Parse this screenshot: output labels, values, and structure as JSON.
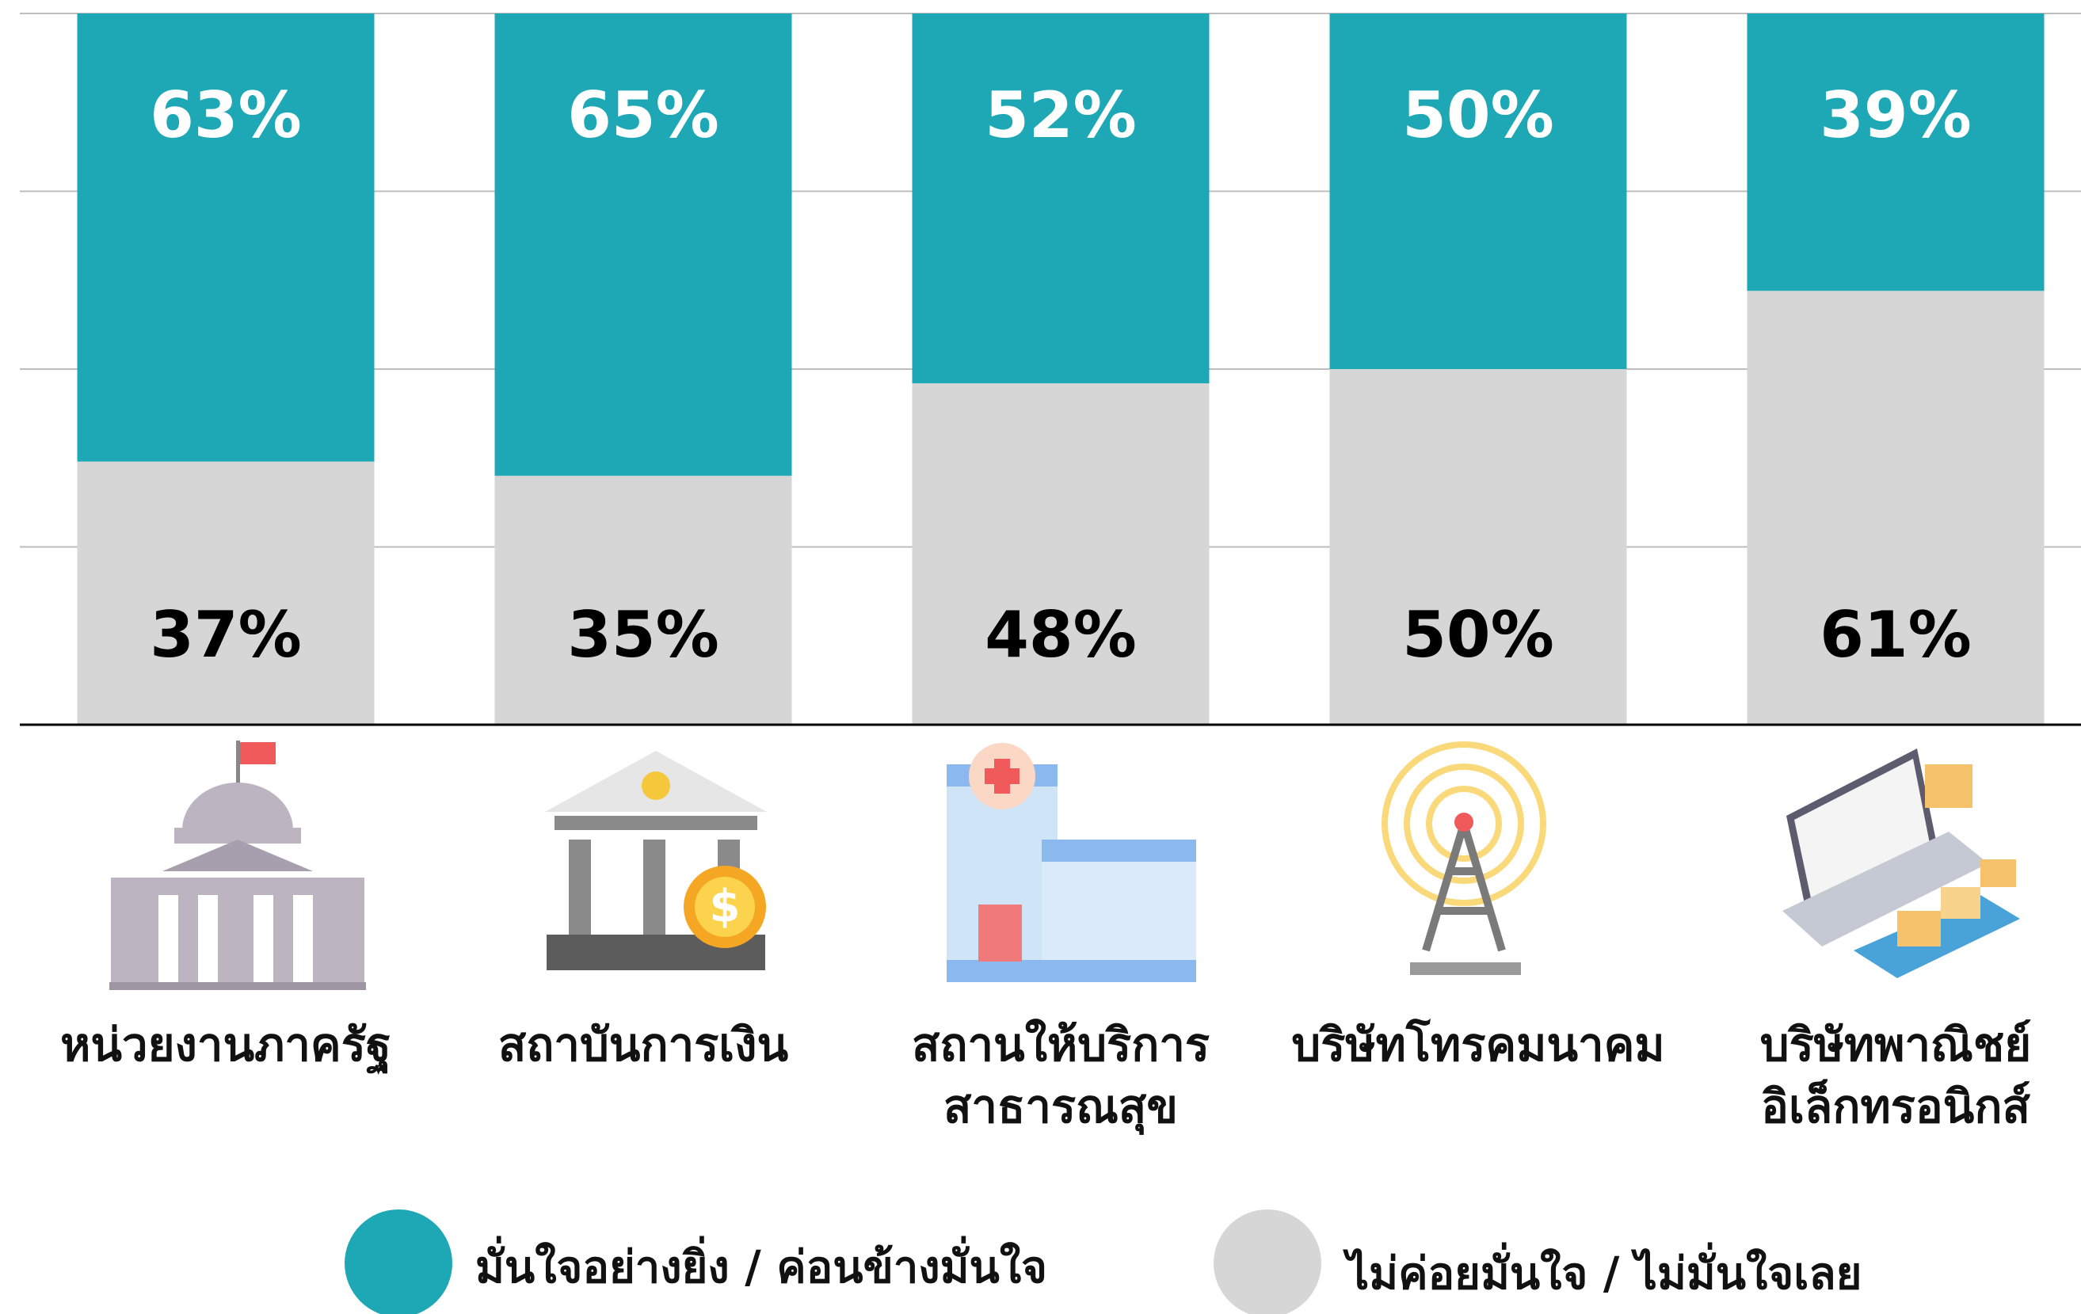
{
  "chart_data": {
    "type": "stacked-bar",
    "categories": [
      "หน่วยงานภาครัฐ",
      "สถาบันการเงิน",
      "สถานให้บริการ\nสาธารณสุข",
      "บริษัทโทรคมนาคม",
      "บริษัทพาณิชย์\nอิเล็กทรอนิกส์"
    ],
    "series": [
      {
        "name": "มั่นใจอย่างยิ่ง / ค่อนข้างมั่นใจ",
        "color": "#1ea8b6",
        "label_color": "#ffffff",
        "values": [
          63,
          65,
          52,
          50,
          39
        ],
        "value_labels": [
          "63%",
          "65%",
          "52%",
          "50%",
          "39%"
        ]
      },
      {
        "name": "ไม่ค่อยมั่นใจ / ไม่มั่นใจเลย",
        "color": "#d6d6d6",
        "label_color": "#000000",
        "values": [
          37,
          35,
          48,
          50,
          61
        ],
        "value_labels": [
          "37%",
          "35%",
          "48%",
          "50%",
          "61%"
        ]
      }
    ],
    "ylim": [
      0,
      100
    ],
    "yticks": [
      0,
      25,
      50,
      75,
      100
    ],
    "grid": true
  }
}
